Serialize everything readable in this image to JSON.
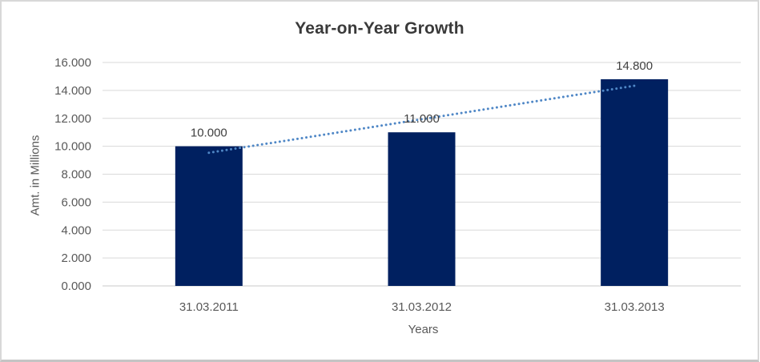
{
  "chart_data": {
    "type": "bar",
    "title": "Year-on-Year Growth",
    "xlabel": "Years",
    "ylabel": "Amt. in Millions",
    "categories": [
      "31.03.2011",
      "31.03.2012",
      "31.03.2013"
    ],
    "values": [
      10.0,
      11.0,
      14.8
    ],
    "data_labels": [
      "10.000",
      "11.000",
      "14.800"
    ],
    "ylim": [
      0,
      16
    ],
    "ytick_step": 2,
    "ytick_labels": [
      "0.000",
      "2.000",
      "4.000",
      "6.000",
      "8.000",
      "10.000",
      "12.000",
      "14.000",
      "16.000"
    ],
    "grid": true,
    "legend": "none",
    "trendline": {
      "type": "linear",
      "style": "dotted",
      "color": "#4f87c6"
    },
    "colors": {
      "bar": "#002060",
      "gridline": "#d9d9d9",
      "axis_line": "#c9c9c9",
      "title_text": "#3a3a3a",
      "tick_text": "#595959",
      "label_text": "#404040"
    }
  }
}
